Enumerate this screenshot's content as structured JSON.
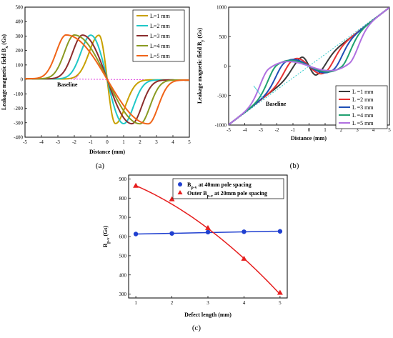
{
  "chart_data": [
    {
      "type": "line",
      "panel_label": "(a)",
      "xlabel": "Distance (mm)",
      "ylabel_main": "Leakage magnetic field B",
      "ylabel_sub": "x",
      "ylabel_unit": " (Gs)",
      "xlim": [
        -5,
        5
      ],
      "ylim": [
        -400,
        500
      ],
      "xticks": [
        "-5",
        "-4",
        "-3",
        "-2",
        "-1",
        "0",
        "1",
        "2",
        "3",
        "4",
        "5"
      ],
      "yticks": [
        "-400",
        "-300",
        "-200",
        "-100",
        "0",
        "100",
        "200",
        "300",
        "400",
        "500"
      ],
      "annotation": "Baseline",
      "model": {
        "form": "odd derivative-of-gaussian pulse, peak at -L/2",
        "peak": 305,
        "width": 0.6,
        "baseline": [
          [
            -5,
            5
          ],
          [
            5,
            -5
          ]
        ]
      },
      "series": [
        {
          "name": "L=1 mm",
          "L": 1,
          "color": "#c8a000"
        },
        {
          "name": "L=2 mm",
          "L": 2,
          "color": "#1fc7c7"
        },
        {
          "name": "L=3 mm",
          "L": 3,
          "color": "#8b2c2c"
        },
        {
          "name": "L=4 mm",
          "L": 4,
          "color": "#8a9a22"
        },
        {
          "name": "L=5 mm",
          "L": 5,
          "color": "#f06418"
        }
      ]
    },
    {
      "type": "line",
      "panel_label": "(b)",
      "xlabel": "Distance (mm)",
      "ylabel_main": "Leakage magnetic field B",
      "ylabel_sub": "y",
      "ylabel_unit": " (Gs)",
      "xlim": [
        -5,
        5
      ],
      "ylim": [
        -1000,
        1000
      ],
      "xticks": [
        "-5",
        "-4",
        "-3",
        "-2",
        "-1",
        "0",
        "1",
        "2",
        "3",
        "4",
        "5"
      ],
      "yticks": [
        "-1000",
        "-500",
        "0",
        "500",
        "1000"
      ],
      "yticks_values": [
        -1000,
        -500,
        0,
        500,
        1000
      ],
      "annotation": "Baseline",
      "model": {
        "form": "linear trend 200x plus odd derivative-of-gaussian pulse, peak at -L/2",
        "peak_adjust": [
          230,
          280,
          330,
          380,
          420
        ],
        "width": 0.55,
        "baseline": [
          [
            -5,
            -1000
          ],
          [
            5,
            1000
          ]
        ]
      },
      "series": [
        {
          "name": "L =1 mm",
          "L": 1,
          "color": "#3a3a3a"
        },
        {
          "name": "L =2 mm",
          "L": 2,
          "color": "#e63232"
        },
        {
          "name": "L =3 mm",
          "L": 3,
          "color": "#1f4fb5"
        },
        {
          "name": "L =4 mm",
          "L": 4,
          "color": "#20a070"
        },
        {
          "name": "L =5 mm",
          "L": 5,
          "color": "#b070e0"
        }
      ]
    },
    {
      "type": "scatter",
      "panel_label": "(c)",
      "xlabel": "Defect length (mm)",
      "ylabel_main": "B",
      "ylabel_sub": "p-v",
      "ylabel_unit": " (Gs)",
      "xlim": [
        0.8,
        5.2
      ],
      "ylim": [
        280,
        920
      ],
      "xticks": [
        "1",
        "2",
        "3",
        "4",
        "5"
      ],
      "xticks_values": [
        1,
        2,
        3,
        4,
        5
      ],
      "yticks": [
        "300",
        "400",
        "500",
        "600",
        "700",
        "800",
        "900"
      ],
      "yticks_values": [
        300,
        400,
        500,
        600,
        700,
        800,
        900
      ],
      "series": [
        {
          "name_main": "B",
          "name_sub": "p-v",
          "name_rest": " at 40mm pole spacing",
          "marker": "circle",
          "color": "#1f3fd0",
          "x": [
            1,
            2,
            3,
            4,
            5
          ],
          "y": [
            613,
            616,
            623,
            625,
            627
          ],
          "fit": [
            [
              1,
              613
            ],
            [
              5,
              628
            ]
          ]
        },
        {
          "name_main": "Outer B",
          "name_sub": "p-v",
          "name_rest": " at 20mm pole spacing",
          "marker": "triangle",
          "color": "#e61e1e",
          "x": [
            1,
            2,
            3,
            4,
            5
          ],
          "y": [
            865,
            795,
            645,
            485,
            308
          ],
          "fit_quadratic": [
            -14.9,
            -52,
            932
          ]
        }
      ]
    }
  ]
}
